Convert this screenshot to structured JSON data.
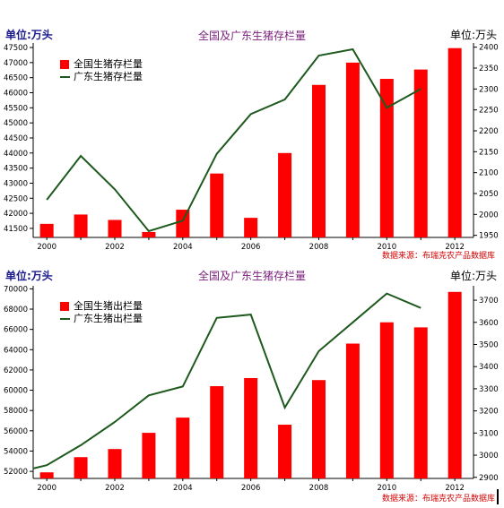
{
  "chart_data": [
    {
      "type": "bar+line",
      "title": "全国及广东生猪存栏量",
      "left_unit": "单位:万头",
      "right_unit": "单位:万头",
      "source": "数据来源：布瑞克农产品数据库",
      "x_tick_labels": [
        "2000",
        "2002",
        "2004",
        "2006",
        "2008",
        "2010",
        "2012"
      ],
      "y_left_ticks": [
        41500,
        42000,
        42500,
        43000,
        43500,
        44000,
        44500,
        45000,
        45500,
        46000,
        46500,
        47000,
        47500
      ],
      "y_right_ticks": [
        1950,
        2000,
        2050,
        2100,
        2150,
        2200,
        2250,
        2300,
        2350,
        2400
      ],
      "ylim_left": [
        41200,
        47650
      ],
      "ylim_right": [
        1945,
        2410
      ],
      "years": [
        2000,
        2001,
        2002,
        2003,
        2004,
        2005,
        2006,
        2007,
        2008,
        2009,
        2010,
        2011,
        2012
      ],
      "series": [
        {
          "name": "全国生猪存栏量",
          "kind": "bar",
          "axis": "left",
          "color": "#ff0000",
          "x": [
            2000,
            2001,
            2002,
            2003,
            2004,
            2005,
            2006,
            2007,
            2008,
            2009,
            2010,
            2011,
            2012
          ],
          "values": [
            41650,
            41960,
            41780,
            41380,
            42120,
            43320,
            41850,
            44000,
            46260,
            47000,
            46460,
            46770,
            47480
          ]
        },
        {
          "name": "广东生猪存栏量",
          "kind": "line",
          "axis": "right",
          "color": "#1e5a1e",
          "x": [
            2000,
            2001,
            2002,
            2003,
            2004,
            2005,
            2006,
            2007,
            2008,
            2009,
            2010,
            2011
          ],
          "values": [
            2035,
            2140,
            2060,
            1960,
            1985,
            2145,
            2240,
            2275,
            2380,
            2395,
            2255,
            2300
          ]
        }
      ]
    },
    {
      "type": "bar+line",
      "title": "全国及广东生猪存栏量",
      "left_unit": "单位:万头",
      "right_unit": "单位:万头",
      "source": "数据来源：布瑞克农产品数据库",
      "x_tick_labels": [
        "2000",
        "2002",
        "2004",
        "2006",
        "2008",
        "2010",
        "2012"
      ],
      "y_left_ticks": [
        52000,
        54000,
        56000,
        58000,
        60000,
        62000,
        64000,
        66000,
        68000,
        70000
      ],
      "y_right_ticks": [
        2900,
        3000,
        3100,
        3200,
        3300,
        3400,
        3500,
        3600,
        3700
      ],
      "ylim_left": [
        51300,
        70300
      ],
      "ylim_right": [
        2895,
        3765
      ],
      "years": [
        2000,
        2001,
        2002,
        2003,
        2004,
        2005,
        2006,
        2007,
        2008,
        2009,
        2010,
        2011,
        2012
      ],
      "series": [
        {
          "name": "全国生猪出栏量",
          "kind": "bar",
          "axis": "left",
          "color": "#ff0000",
          "x": [
            2000,
            2001,
            2002,
            2003,
            2004,
            2005,
            2006,
            2007,
            2008,
            2009,
            2010,
            2011,
            2012
          ],
          "values": [
            51900,
            53400,
            54200,
            55800,
            57300,
            60400,
            61200,
            56600,
            61000,
            64600,
            66700,
            66200,
            69700
          ]
        },
        {
          "name": "广东生猪出栏量",
          "kind": "line",
          "axis": "right",
          "color": "#1e5a1e",
          "x": [
            1999.6,
            2000,
            2001,
            2002,
            2003,
            2004,
            2005,
            2006,
            2007,
            2008,
            2009,
            2010,
            2011
          ],
          "values": [
            2940,
            2955,
            3045,
            3150,
            3270,
            3310,
            3620,
            3635,
            3215,
            3470,
            3600,
            3730,
            3665
          ]
        }
      ]
    }
  ]
}
